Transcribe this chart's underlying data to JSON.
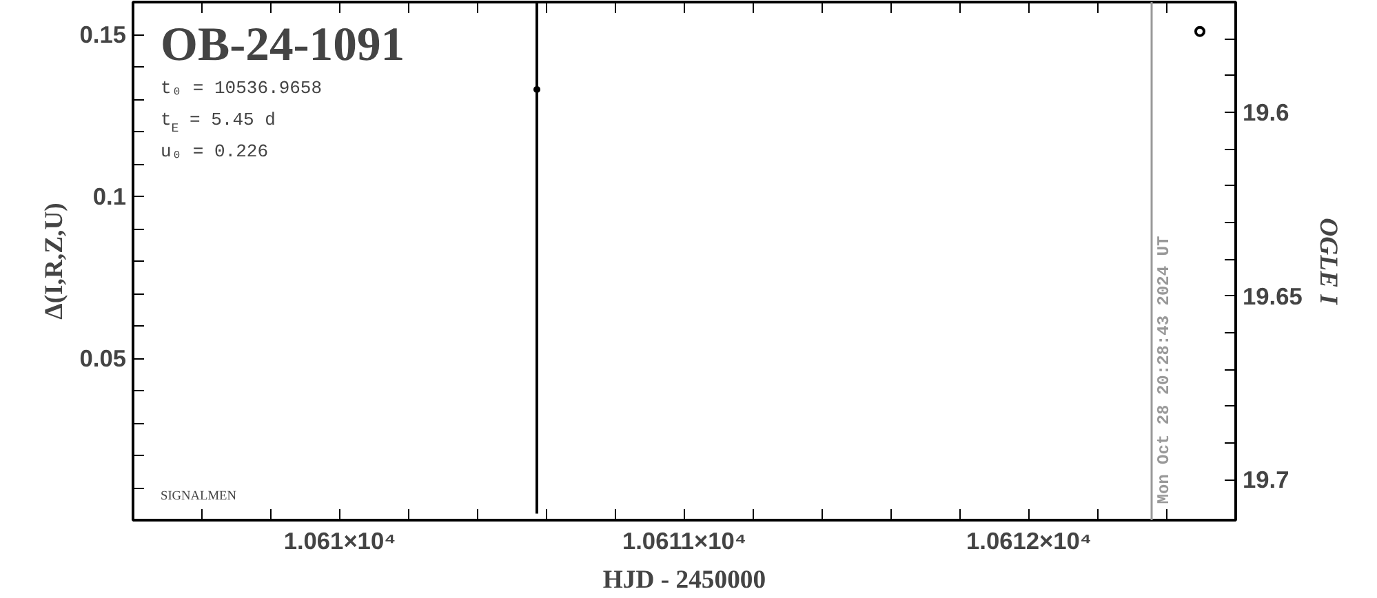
{
  "chart_data": {
    "type": "scatter",
    "title": "OB-24-1091",
    "xlabel": "HJD - 2450000",
    "ylabel": "Δ(I,R,Z,U)",
    "y2label": "OGLE I",
    "annotations": [
      "t₀ = 10536.9658",
      "t$_{E}$ = 5.45 d",
      "u₀ = 0.226",
      {
        "text": "Mon Oct 28 20:28:43 2024 UT",
        "x": 10612.356,
        "y": 0.005
      },
      "SIGNALMEN"
    ],
    "series": [
      {
        "color": "#000000",
        "x": [
          10610.572
        ],
        "values": [
          0.133
        ],
        "errors": [
          [
            0.002,
            0.16
          ]
        ],
        "marker": "circle"
      },
      {
        "color": "#000000",
        "x": [
          10612.496
        ],
        "values": [
          19.578
        ],
        "axis": "y2",
        "marker": "circle"
      }
    ],
    "xlim": [
      10609.4,
      10612.6
    ],
    "ylim": [
      0,
      0.16
    ],
    "y2lim": [
      19.711,
      19.57
    ],
    "xticks": [
      {
        "value": 10609.6,
        "label": null
      },
      {
        "value": 10609.8,
        "label": null
      },
      {
        "value": 10610,
        "label": "1.061×10⁴"
      },
      {
        "value": 10610.2,
        "label": null
      },
      {
        "value": 10610.4,
        "label": null
      },
      {
        "value": 10610.6,
        "label": null
      },
      {
        "value": 10610.8,
        "label": null
      },
      {
        "value": 10611,
        "label": "1.0611×10⁴"
      },
      {
        "value": 10611.2,
        "label": null
      },
      {
        "value": 10611.4,
        "label": null
      },
      {
        "value": 10611.6,
        "label": null
      },
      {
        "value": 10611.8,
        "label": null
      },
      {
        "value": 10612,
        "label": "1.0612×10⁴"
      },
      {
        "value": 10612.2,
        "label": null
      },
      {
        "value": 10612.4,
        "label": null
      }
    ],
    "yticks": [
      {
        "value": 0.01,
        "label": null
      },
      {
        "value": 0.02,
        "label": null
      },
      {
        "value": 0.03,
        "label": null
      },
      {
        "value": 0.04,
        "label": null
      },
      0.05,
      {
        "value": 0.06,
        "label": null
      },
      {
        "value": 0.07,
        "label": null
      },
      {
        "value": 0.08,
        "label": null
      },
      {
        "value": 0.09,
        "label": null
      },
      0.1,
      {
        "value": 0.11,
        "label": null
      },
      {
        "value": 0.12,
        "label": null
      },
      {
        "value": 0.13,
        "label": null
      },
      {
        "value": 0.14,
        "label": null
      },
      0.15
    ],
    "y2ticks": [
      {
        "value": 19.58,
        "label": null
      },
      {
        "value": 19.59,
        "label": null
      },
      19.6,
      {
        "value": 19.61,
        "label": null
      },
      {
        "value": 19.62,
        "label": null
      },
      {
        "value": 19.63,
        "label": null
      },
      {
        "value": 19.64,
        "label": null
      },
      19.65,
      {
        "value": 19.66,
        "label": null
      },
      {
        "value": 19.67,
        "label": null
      },
      {
        "value": 19.68,
        "label": null
      },
      {
        "value": 19.69,
        "label": null
      },
      19.7
    ],
    "ref_lines": [
      {
        "axis": "x",
        "value": 10612.356,
        "color": "#999999"
      }
    ],
    "grid": false
  }
}
